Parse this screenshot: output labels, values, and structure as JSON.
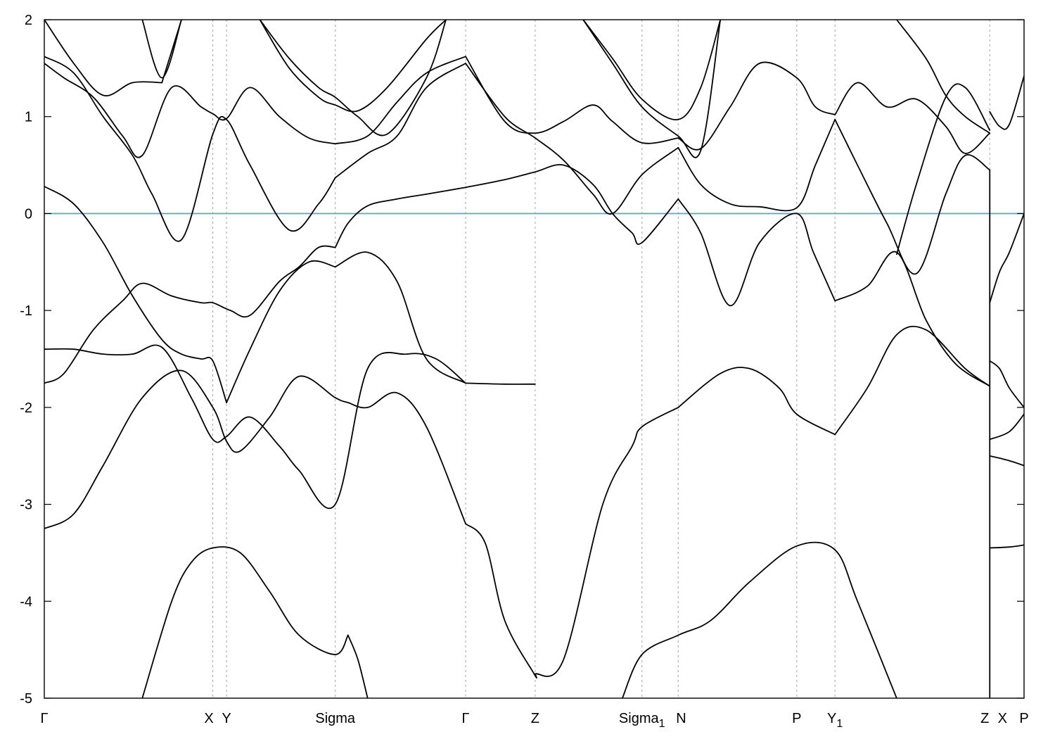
{
  "chart_data": {
    "type": "line",
    "title": "",
    "xlabel": "",
    "ylabel": "",
    "ylim": [
      -5,
      2
    ],
    "xlim": [
      0,
      1
    ],
    "grid": false,
    "legend": "none",
    "y_ticks": [
      -5,
      -4,
      -3,
      -2,
      -1,
      0,
      1,
      2
    ],
    "y_tick_labels": [
      "-5",
      "-4",
      "-3",
      "-2",
      "-1",
      "0",
      "1",
      "2"
    ],
    "k_points": [
      {
        "label": "Γ",
        "sub": "",
        "x": 0.0
      },
      {
        "label": "X",
        "sub": "",
        "x": 0.172
      },
      {
        "label": "Y",
        "sub": "",
        "x": 0.186
      },
      {
        "label": "Sigma",
        "sub": "",
        "x": 0.297
      },
      {
        "label": "Γ",
        "sub": "",
        "x": 0.43
      },
      {
        "label": "Z",
        "sub": "",
        "x": 0.501
      },
      {
        "label": "Sigma",
        "sub": "1",
        "x": 0.61
      },
      {
        "label": "N",
        "sub": "",
        "x": 0.647
      },
      {
        "label": "P",
        "sub": "",
        "x": 0.768
      },
      {
        "label": "Y",
        "sub": "",
        "x": 0.807
      },
      {
        "label": "Y",
        "sub": "1",
        "x": 0.807
      },
      {
        "label": "Z",
        "sub": "",
        "x": 0.965
      },
      {
        "label": "X",
        "sub": "",
        "x": 0.965
      },
      {
        "label": "P",
        "sub": "",
        "x": 1.0
      }
    ],
    "x_tick_labels": [
      {
        "text": "Γ",
        "sub": "",
        "x": 0.0
      },
      {
        "text": "X",
        "sub": "",
        "x": 0.168
      },
      {
        "text": "Y",
        "sub": "",
        "x": 0.186
      },
      {
        "text": "Sigma",
        "sub": "",
        "x": 0.297
      },
      {
        "text": "Γ",
        "sub": "",
        "x": 0.43
      },
      {
        "text": "Z",
        "sub": "",
        "x": 0.501
      },
      {
        "text": "Sigma",
        "sub": "1",
        "x": 0.61
      },
      {
        "text": "N",
        "sub": "",
        "x": 0.65
      },
      {
        "text": "P",
        "sub": "",
        "x": 0.768
      },
      {
        "text": "Y",
        "sub": "1",
        "x": 0.807
      },
      {
        "text": "Z",
        "sub": "",
        "x": 0.96
      },
      {
        "text": "X",
        "sub": "",
        "x": 0.978
      },
      {
        "text": "P",
        "sub": "",
        "x": 1.0
      }
    ],
    "vertical_lines": [
      0.172,
      0.186,
      0.297,
      0.43,
      0.501,
      0.61,
      0.647,
      0.768,
      0.807,
      0.965
    ],
    "fermi_level": 0,
    "fermi_color": "#58aec8",
    "band_color": "#000000",
    "series": [
      {
        "x": [
          0,
          0.03,
          0.06,
          0.1,
          0.14,
          0.172,
          0.186,
          0.2,
          0.23,
          0.26,
          0.297,
          0.31,
          0.33,
          0.36,
          0.39,
          0.43
        ],
        "values": [
          -3.25,
          -3.1,
          -2.6,
          -1.9,
          -1.62,
          -2.0,
          -2.35,
          -2.45,
          -2.1,
          -1.68,
          -1.9,
          -1.95,
          -2.0,
          -1.85,
          -2.2,
          -3.2
        ]
      },
      {
        "x": [
          0.43,
          0.45,
          0.47,
          0.5,
          0.501
        ],
        "values": [
          -3.2,
          -3.4,
          -4.2,
          -4.75,
          -4.75
        ]
      },
      {
        "x": [
          0.501,
          0.53,
          0.57,
          0.6,
          0.61,
          0.647
        ],
        "values": [
          -4.75,
          -4.6,
          -3.0,
          -2.4,
          -2.2,
          -2.0
        ]
      },
      {
        "x": [
          0.647,
          0.69,
          0.72,
          0.75,
          0.768,
          0.807
        ],
        "values": [
          -2.0,
          -1.65,
          -1.6,
          -1.8,
          -2.07,
          -2.28
        ]
      },
      {
        "x": [
          0.807,
          0.84,
          0.87,
          0.9,
          0.94,
          0.965
        ],
        "values": [
          -2.28,
          -1.8,
          -1.25,
          -1.2,
          -1.6,
          -1.78
        ]
      },
      {
        "x": [
          0,
          0.03,
          0.06,
          0.09,
          0.12,
          0.15,
          0.172,
          0.186,
          0.21,
          0.24,
          0.26,
          0.297,
          0.33,
          0.37,
          0.4,
          0.43
        ],
        "values": [
          -1.4,
          -1.4,
          -1.45,
          -1.45,
          -1.38,
          -1.9,
          -2.33,
          -2.3,
          -2.1,
          -2.4,
          -2.65,
          -3.0,
          -1.6,
          -1.45,
          -1.5,
          -1.75
        ]
      },
      {
        "x": [
          0.43,
          0.47,
          0.501
        ],
        "values": [
          -1.75,
          -1.76,
          -1.76
        ]
      },
      {
        "x": [
          0,
          0.02,
          0.05,
          0.08,
          0.1,
          0.13,
          0.16,
          0.172,
          0.19,
          0.21,
          0.24,
          0.26,
          0.28,
          0.297
        ],
        "values": [
          -1.75,
          -1.65,
          -1.2,
          -0.9,
          -0.72,
          -0.85,
          -0.92,
          -0.92,
          -1.0,
          -1.05,
          -0.7,
          -0.55,
          -0.35,
          -0.35
        ]
      },
      {
        "x": [
          0.297,
          0.31,
          0.33,
          0.36,
          0.39,
          0.43
        ],
        "values": [
          -0.35,
          -0.1,
          0.08,
          0.15,
          0.2,
          0.27
        ]
      },
      {
        "x": [
          0.43,
          0.47,
          0.501,
          0.53,
          0.56,
          0.58,
          0.6,
          0.61,
          0.647
        ],
        "values": [
          0.27,
          0.35,
          0.43,
          0.5,
          0.3,
          0.0,
          -0.2,
          -0.3,
          0.15
        ]
      },
      {
        "x": [
          0.647,
          0.67,
          0.7,
          0.73,
          0.768,
          0.785,
          0.807
        ],
        "values": [
          0.15,
          -0.2,
          -0.95,
          -0.3,
          0.0,
          -0.4,
          -0.9
        ]
      },
      {
        "x": [
          0.807,
          0.84,
          0.87,
          0.9,
          0.93,
          0.965
        ],
        "values": [
          -0.9,
          -0.75,
          -0.4,
          -1.1,
          -1.55,
          -1.78
        ]
      },
      {
        "x": [
          0,
          0.03,
          0.06,
          0.09,
          0.12,
          0.14,
          0.16,
          0.172,
          0.186
        ],
        "values": [
          0.28,
          0.1,
          -0.3,
          -0.85,
          -1.3,
          -1.45,
          -1.5,
          -1.52,
          -1.95
        ]
      },
      {
        "x": [
          0.186,
          0.21,
          0.24,
          0.27,
          0.297
        ],
        "values": [
          -1.95,
          -1.4,
          -0.8,
          -0.5,
          -0.55
        ]
      },
      {
        "x": [
          0.297,
          0.33,
          0.36,
          0.39,
          0.43
        ],
        "values": [
          -0.55,
          -0.4,
          -0.7,
          -1.5,
          -1.75
        ]
      },
      {
        "x": [
          0,
          0.03,
          0.06,
          0.09,
          0.11,
          0.14,
          0.172,
          0.186,
          0.21,
          0.25,
          0.28,
          0.297
        ],
        "values": [
          1.62,
          1.45,
          1.0,
          0.6,
          0.2,
          -0.27,
          0.82,
          0.97,
          0.5,
          -0.17,
          0.1,
          0.37
        ]
      },
      {
        "x": [
          0.297,
          0.33,
          0.36,
          0.39,
          0.43
        ],
        "values": [
          0.37,
          0.62,
          0.8,
          1.3,
          1.55
        ]
      },
      {
        "x": [
          0.43,
          0.47,
          0.501,
          0.53,
          0.56,
          0.58,
          0.61,
          0.647
        ],
        "values": [
          1.55,
          1.0,
          0.78,
          0.55,
          0.2,
          0.0,
          0.4,
          0.68
        ]
      },
      {
        "x": [
          0.647,
          0.67,
          0.7,
          0.73,
          0.768,
          0.787,
          0.807
        ],
        "values": [
          0.68,
          0.3,
          0.1,
          0.07,
          0.06,
          0.5,
          0.97
        ]
      },
      {
        "x": [
          0.807,
          0.83,
          0.86,
          0.89,
          0.92,
          0.94,
          0.965
        ],
        "values": [
          0.97,
          0.5,
          -0.1,
          -0.62,
          0.2,
          0.6,
          0.45
        ]
      },
      {
        "x": [
          0,
          0.02,
          0.05,
          0.08,
          0.1,
          0.13,
          0.16,
          0.172,
          0.186,
          0.21,
          0.24,
          0.27,
          0.297
        ],
        "values": [
          1.55,
          1.4,
          1.2,
          0.8,
          0.6,
          1.3,
          1.1,
          1.03,
          0.98,
          1.3,
          1.0,
          0.78,
          0.72
        ]
      },
      {
        "x": [
          0.297,
          0.33,
          0.36,
          0.39,
          0.43
        ],
        "values": [
          0.72,
          0.8,
          1.15,
          1.45,
          1.62
        ]
      },
      {
        "x": [
          0.43,
          0.47,
          0.501,
          0.53,
          0.56,
          0.58,
          0.61,
          0.647
        ],
        "values": [
          1.62,
          0.95,
          0.83,
          0.95,
          1.12,
          0.95,
          0.73,
          0.78
        ]
      },
      {
        "x": [
          0.647,
          0.67,
          0.7,
          0.73,
          0.768,
          0.787,
          0.807
        ],
        "values": [
          0.78,
          0.67,
          1.1,
          1.55,
          1.4,
          1.1,
          1.02
        ]
      },
      {
        "x": [
          0.807,
          0.83,
          0.86,
          0.89,
          0.92,
          0.94,
          0.965
        ],
        "values": [
          1.02,
          1.35,
          1.1,
          1.18,
          0.9,
          0.62,
          0.83
        ]
      },
      {
        "x": [
          0,
          0.03,
          0.06,
          0.09,
          0.12
        ],
        "values": [
          2.0,
          1.55,
          1.22,
          1.35,
          1.35
        ]
      },
      {
        "x": [
          0.12,
          0.14
        ],
        "values": [
          1.35,
          2.0
        ]
      },
      {
        "x": [
          0.1,
          0.12,
          0.14
        ],
        "values": [
          2.0,
          1.4,
          2.0
        ]
      },
      {
        "x": [
          0.22,
          0.25,
          0.28,
          0.297,
          0.32,
          0.35,
          0.39,
          0.41
        ],
        "values": [
          2.0,
          1.5,
          1.2,
          1.12,
          1.06,
          1.3,
          1.8,
          2.0
        ]
      },
      {
        "x": [
          0.22,
          0.25,
          0.28,
          0.297,
          0.32,
          0.35,
          0.39,
          0.41
        ],
        "values": [
          2.0,
          1.6,
          1.3,
          1.2,
          1.0,
          0.82,
          1.4,
          2.0
        ]
      },
      {
        "x": [
          0.55,
          0.58,
          0.61,
          0.647,
          0.67,
          0.69
        ],
        "values": [
          2.0,
          1.6,
          1.18,
          0.97,
          1.3,
          2.0
        ]
      },
      {
        "x": [
          0.55,
          0.58,
          0.61,
          0.647,
          0.67,
          0.69
        ],
        "values": [
          2.0,
          1.55,
          1.1,
          0.8,
          0.65,
          2.0
        ]
      },
      {
        "x": [
          0.87,
          0.9,
          0.92,
          0.94,
          0.965
        ],
        "values": [
          2.0,
          1.6,
          1.22,
          1.0,
          0.83
        ]
      },
      {
        "x": [
          0.87,
          0.89,
          0.92,
          0.94,
          0.965
        ],
        "values": [
          -0.42,
          0.3,
          1.2,
          1.3,
          0.86
        ]
      },
      {
        "x": [
          0.1,
          0.13,
          0.15,
          0.172,
          0.2,
          0.23,
          0.26,
          0.297,
          0.31
        ],
        "values": [
          -5.0,
          -4.0,
          -3.6,
          -3.45,
          -3.5,
          -3.9,
          -4.35,
          -4.55,
          -4.35
        ]
      },
      {
        "x": [
          0.31,
          0.32,
          0.33
        ],
        "values": [
          -4.35,
          -4.6,
          -5.0
        ]
      },
      {
        "x": [
          0.59,
          0.61,
          0.647,
          0.68,
          0.72,
          0.768,
          0.807,
          0.83,
          0.87
        ],
        "values": [
          -5.0,
          -4.55,
          -4.35,
          -4.2,
          -3.8,
          -3.43,
          -3.47,
          -4.0,
          -5.0
        ]
      },
      {
        "x": [
          0.965,
          0.975,
          0.985,
          1.0
        ],
        "values": [
          1.05,
          0.9,
          0.92,
          1.42
        ]
      },
      {
        "x": [
          0.965,
          0.975,
          0.985,
          1.0
        ],
        "values": [
          -0.92,
          -0.6,
          -0.4,
          0.0
        ]
      },
      {
        "x": [
          0.965,
          0.975,
          0.985,
          1.0
        ],
        "values": [
          -1.52,
          -1.6,
          -1.8,
          -2.0
        ]
      },
      {
        "x": [
          0.965,
          0.985,
          1.0
        ],
        "values": [
          -2.33,
          -2.25,
          -2.07
        ]
      },
      {
        "x": [
          0.965,
          0.985,
          1.0
        ],
        "values": [
          -2.5,
          -2.55,
          -2.6
        ]
      },
      {
        "x": [
          0.965,
          0.985,
          1.0
        ],
        "values": [
          -3.45,
          -3.44,
          -3.42
        ]
      }
    ]
  }
}
